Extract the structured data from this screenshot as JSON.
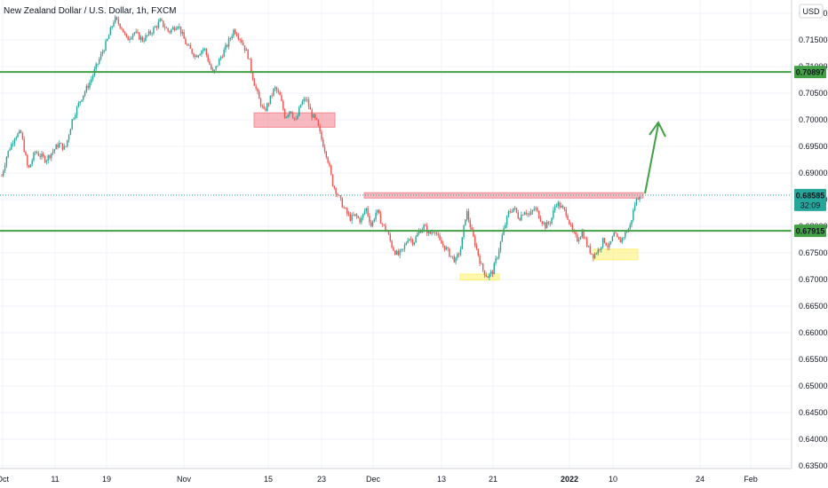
{
  "chart_data": {
    "type": "candlestick",
    "title": "New Zealand Dollar / U.S. Dollar, 1h, FXCM",
    "currency_label": "USD",
    "grid": true,
    "y_axis": {
      "ticks": [
        "0.72000",
        "0.71500",
        "0.71000",
        "0.70500",
        "0.70000",
        "0.69500",
        "0.69000",
        "0.68500",
        "0.68000",
        "0.67500",
        "0.67000",
        "0.66500",
        "0.66000",
        "0.65500",
        "0.65000",
        "0.64500",
        "0.64000",
        "0.63500"
      ],
      "ylim": [
        0.6345,
        0.7225
      ]
    },
    "x_axis": {
      "ticks": [
        "Oct",
        "11",
        "19",
        "Nov",
        "15",
        "23",
        "Dec",
        "13",
        "21",
        "2022",
        "10",
        "24",
        "Feb"
      ],
      "bold_ticks": [
        "2022"
      ]
    },
    "price_path": [
      {
        "t": 0,
        "p": 0.6895
      },
      {
        "t": 0.6,
        "p": 0.6935
      },
      {
        "t": 1.5,
        "p": 0.697
      },
      {
        "t": 2.2,
        "p": 0.6975
      },
      {
        "t": 3.0,
        "p": 0.6905
      },
      {
        "t": 3.8,
        "p": 0.694
      },
      {
        "t": 5.0,
        "p": 0.6925
      },
      {
        "t": 6.5,
        "p": 0.6955
      },
      {
        "t": 7.2,
        "p": 0.6945
      },
      {
        "t": 8.0,
        "p": 0.7
      },
      {
        "t": 9.0,
        "p": 0.704
      },
      {
        "t": 10.0,
        "p": 0.707
      },
      {
        "t": 11.0,
        "p": 0.711
      },
      {
        "t": 12.0,
        "p": 0.715
      },
      {
        "t": 12.8,
        "p": 0.719
      },
      {
        "t": 13.6,
        "p": 0.7175
      },
      {
        "t": 14.2,
        "p": 0.715
      },
      {
        "t": 15.0,
        "p": 0.7165
      },
      {
        "t": 16.0,
        "p": 0.715
      },
      {
        "t": 17.0,
        "p": 0.7165
      },
      {
        "t": 18.0,
        "p": 0.7185
      },
      {
        "t": 19.0,
        "p": 0.7165
      },
      {
        "t": 20.0,
        "p": 0.718
      },
      {
        "t": 21.0,
        "p": 0.714
      },
      {
        "t": 22.0,
        "p": 0.712
      },
      {
        "t": 23.0,
        "p": 0.7135
      },
      {
        "t": 24.0,
        "p": 0.7085
      },
      {
        "t": 24.8,
        "p": 0.7115
      },
      {
        "t": 25.6,
        "p": 0.714
      },
      {
        "t": 26.4,
        "p": 0.717
      },
      {
        "t": 27.2,
        "p": 0.715
      },
      {
        "t": 28.0,
        "p": 0.712
      },
      {
        "t": 28.6,
        "p": 0.7075
      },
      {
        "t": 29.2,
        "p": 0.704
      },
      {
        "t": 29.8,
        "p": 0.7015
      },
      {
        "t": 30.4,
        "p": 0.7035
      },
      {
        "t": 31.0,
        "p": 0.706
      },
      {
        "t": 31.6,
        "p": 0.7045
      },
      {
        "t": 32.2,
        "p": 0.7005
      },
      {
        "t": 32.8,
        "p": 0.702
      },
      {
        "t": 33.4,
        "p": 0.6995
      },
      {
        "t": 34.0,
        "p": 0.703
      },
      {
        "t": 34.6,
        "p": 0.704
      },
      {
        "t": 35.2,
        "p": 0.701
      },
      {
        "t": 35.8,
        "p": 0.6995
      },
      {
        "t": 36.4,
        "p": 0.696
      },
      {
        "t": 37.0,
        "p": 0.693
      },
      {
        "t": 37.6,
        "p": 0.688
      },
      {
        "t": 38.3,
        "p": 0.6855
      },
      {
        "t": 39.0,
        "p": 0.683
      },
      {
        "t": 39.6,
        "p": 0.6815
      },
      {
        "t": 40.2,
        "p": 0.682
      },
      {
        "t": 40.8,
        "p": 0.681
      },
      {
        "t": 41.4,
        "p": 0.6835
      },
      {
        "t": 42.0,
        "p": 0.68
      },
      {
        "t": 42.6,
        "p": 0.683
      },
      {
        "t": 43.2,
        "p": 0.6805
      },
      {
        "t": 43.8,
        "p": 0.679
      },
      {
        "t": 44.4,
        "p": 0.676
      },
      {
        "t": 45.0,
        "p": 0.6745
      },
      {
        "t": 45.6,
        "p": 0.6755
      },
      {
        "t": 46.2,
        "p": 0.678
      },
      {
        "t": 46.8,
        "p": 0.677
      },
      {
        "t": 47.4,
        "p": 0.679
      },
      {
        "t": 48.0,
        "p": 0.68
      },
      {
        "t": 48.6,
        "p": 0.6785
      },
      {
        "t": 49.2,
        "p": 0.6795
      },
      {
        "t": 49.8,
        "p": 0.677
      },
      {
        "t": 50.4,
        "p": 0.676
      },
      {
        "t": 51.0,
        "p": 0.6745
      },
      {
        "t": 51.6,
        "p": 0.6735
      },
      {
        "t": 52.2,
        "p": 0.676
      },
      {
        "t": 52.8,
        "p": 0.683
      },
      {
        "t": 53.4,
        "p": 0.679
      },
      {
        "t": 54.0,
        "p": 0.6755
      },
      {
        "t": 54.6,
        "p": 0.672
      },
      {
        "t": 55.2,
        "p": 0.6705
      },
      {
        "t": 55.8,
        "p": 0.6715
      },
      {
        "t": 56.4,
        "p": 0.675
      },
      {
        "t": 57.0,
        "p": 0.679
      },
      {
        "t": 57.6,
        "p": 0.6825
      },
      {
        "t": 58.2,
        "p": 0.6835
      },
      {
        "t": 58.8,
        "p": 0.6815
      },
      {
        "t": 59.4,
        "p": 0.683
      },
      {
        "t": 60.0,
        "p": 0.682
      },
      {
        "t": 60.6,
        "p": 0.6835
      },
      {
        "t": 61.2,
        "p": 0.6815
      },
      {
        "t": 61.8,
        "p": 0.68
      },
      {
        "t": 62.4,
        "p": 0.681
      },
      {
        "t": 63.0,
        "p": 0.6845
      },
      {
        "t": 63.6,
        "p": 0.6835
      },
      {
        "t": 64.2,
        "p": 0.6825
      },
      {
        "t": 64.8,
        "p": 0.679
      },
      {
        "t": 65.4,
        "p": 0.6775
      },
      {
        "t": 66.0,
        "p": 0.679
      },
      {
        "t": 66.6,
        "p": 0.676
      },
      {
        "t": 67.2,
        "p": 0.6745
      },
      {
        "t": 67.8,
        "p": 0.6755
      },
      {
        "t": 68.4,
        "p": 0.6775
      },
      {
        "t": 69.0,
        "p": 0.676
      },
      {
        "t": 69.6,
        "p": 0.6785
      },
      {
        "t": 70.2,
        "p": 0.677
      },
      {
        "t": 70.8,
        "p": 0.6785
      },
      {
        "t": 71.4,
        "p": 0.68
      },
      {
        "t": 72.0,
        "p": 0.6845
      },
      {
        "t": 72.5,
        "p": 0.686
      }
    ],
    "price_path_x_range": [
      0,
      72.5
    ],
    "horizontal_levels": [
      {
        "value": 0.70897,
        "label": "0.70897",
        "color": "#43a047"
      },
      {
        "value": 0.67915,
        "label": "0.67915",
        "color": "#43a047"
      }
    ],
    "current_price": {
      "label": "0.68585",
      "countdown": "32:09",
      "color": "#26a69a"
    },
    "zones": [
      {
        "kind": "resistance-box",
        "color": "#f28b94",
        "y_top": 0.7013,
        "y_bottom": 0.6986
      },
      {
        "kind": "resistance-line",
        "color": "#f28b94",
        "y_top": 0.6863,
        "y_bottom": 0.6853
      },
      {
        "kind": "support-box",
        "color": "#fff176",
        "y_top": 0.6757,
        "y_bottom": 0.6737
      },
      {
        "kind": "support-box",
        "color": "#fff176",
        "y_top": 0.671,
        "y_bottom": 0.6699
      }
    ],
    "arrow": {
      "color": "#43a047",
      "direction": "up"
    }
  }
}
